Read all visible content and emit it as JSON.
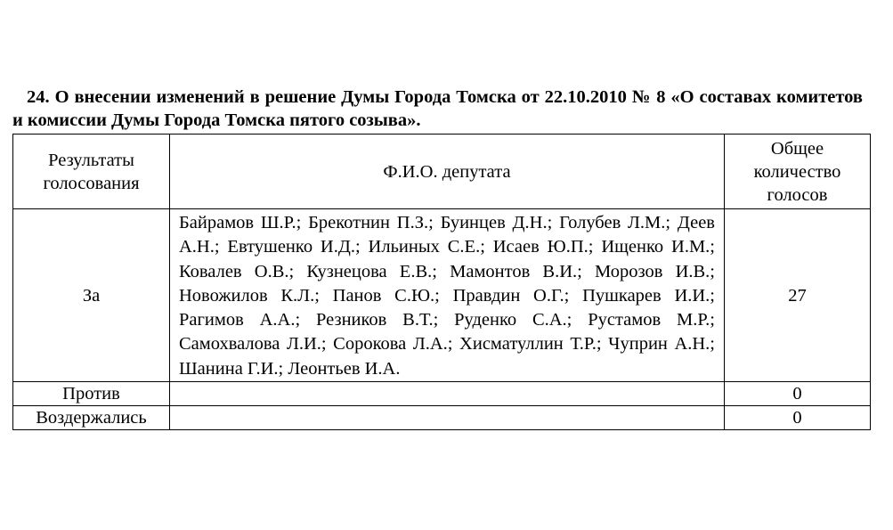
{
  "title": "24. О внесении изменений в решение Думы Города Томска от 22.10.2010 № 8 «О составах комитетов и комиссии Думы Города Томска пятого созыва».",
  "table": {
    "headers": [
      "Результаты голосования",
      "Ф.И.О. депутата",
      "Общее количество голосов"
    ],
    "rows": [
      {
        "result": "За",
        "names": "Байрамов Ш.Р.; Брекотнин П.З.; Буинцев Д.Н.; Голубев Л.М.; Деев А.Н.; Евтушенко И.Д.; Ильиных С.Е.; Исаев Ю.П.; Ищенко И.М.; Ковалев О.В.; Кузнецова Е.В.; Мамонтов В.И.; Морозов И.В.; Новожилов К.Л.; Панов С.Ю.; Правдин О.Г.; Пушкарев И.И.; Рагимов А.А.; Резников В.Т.; Руденко С.А.; Рустамов М.Р.; Самохвалова Л.И.; Сорокова Л.А.; Хисматуллин Т.Р.; Чуприн А.Н.; Шанина Г.И.; Леонтьев И.А.",
        "count": "27"
      },
      {
        "result": "Против",
        "names": "",
        "count": "0"
      },
      {
        "result": "Воздержались",
        "names": "",
        "count": "0"
      }
    ]
  }
}
